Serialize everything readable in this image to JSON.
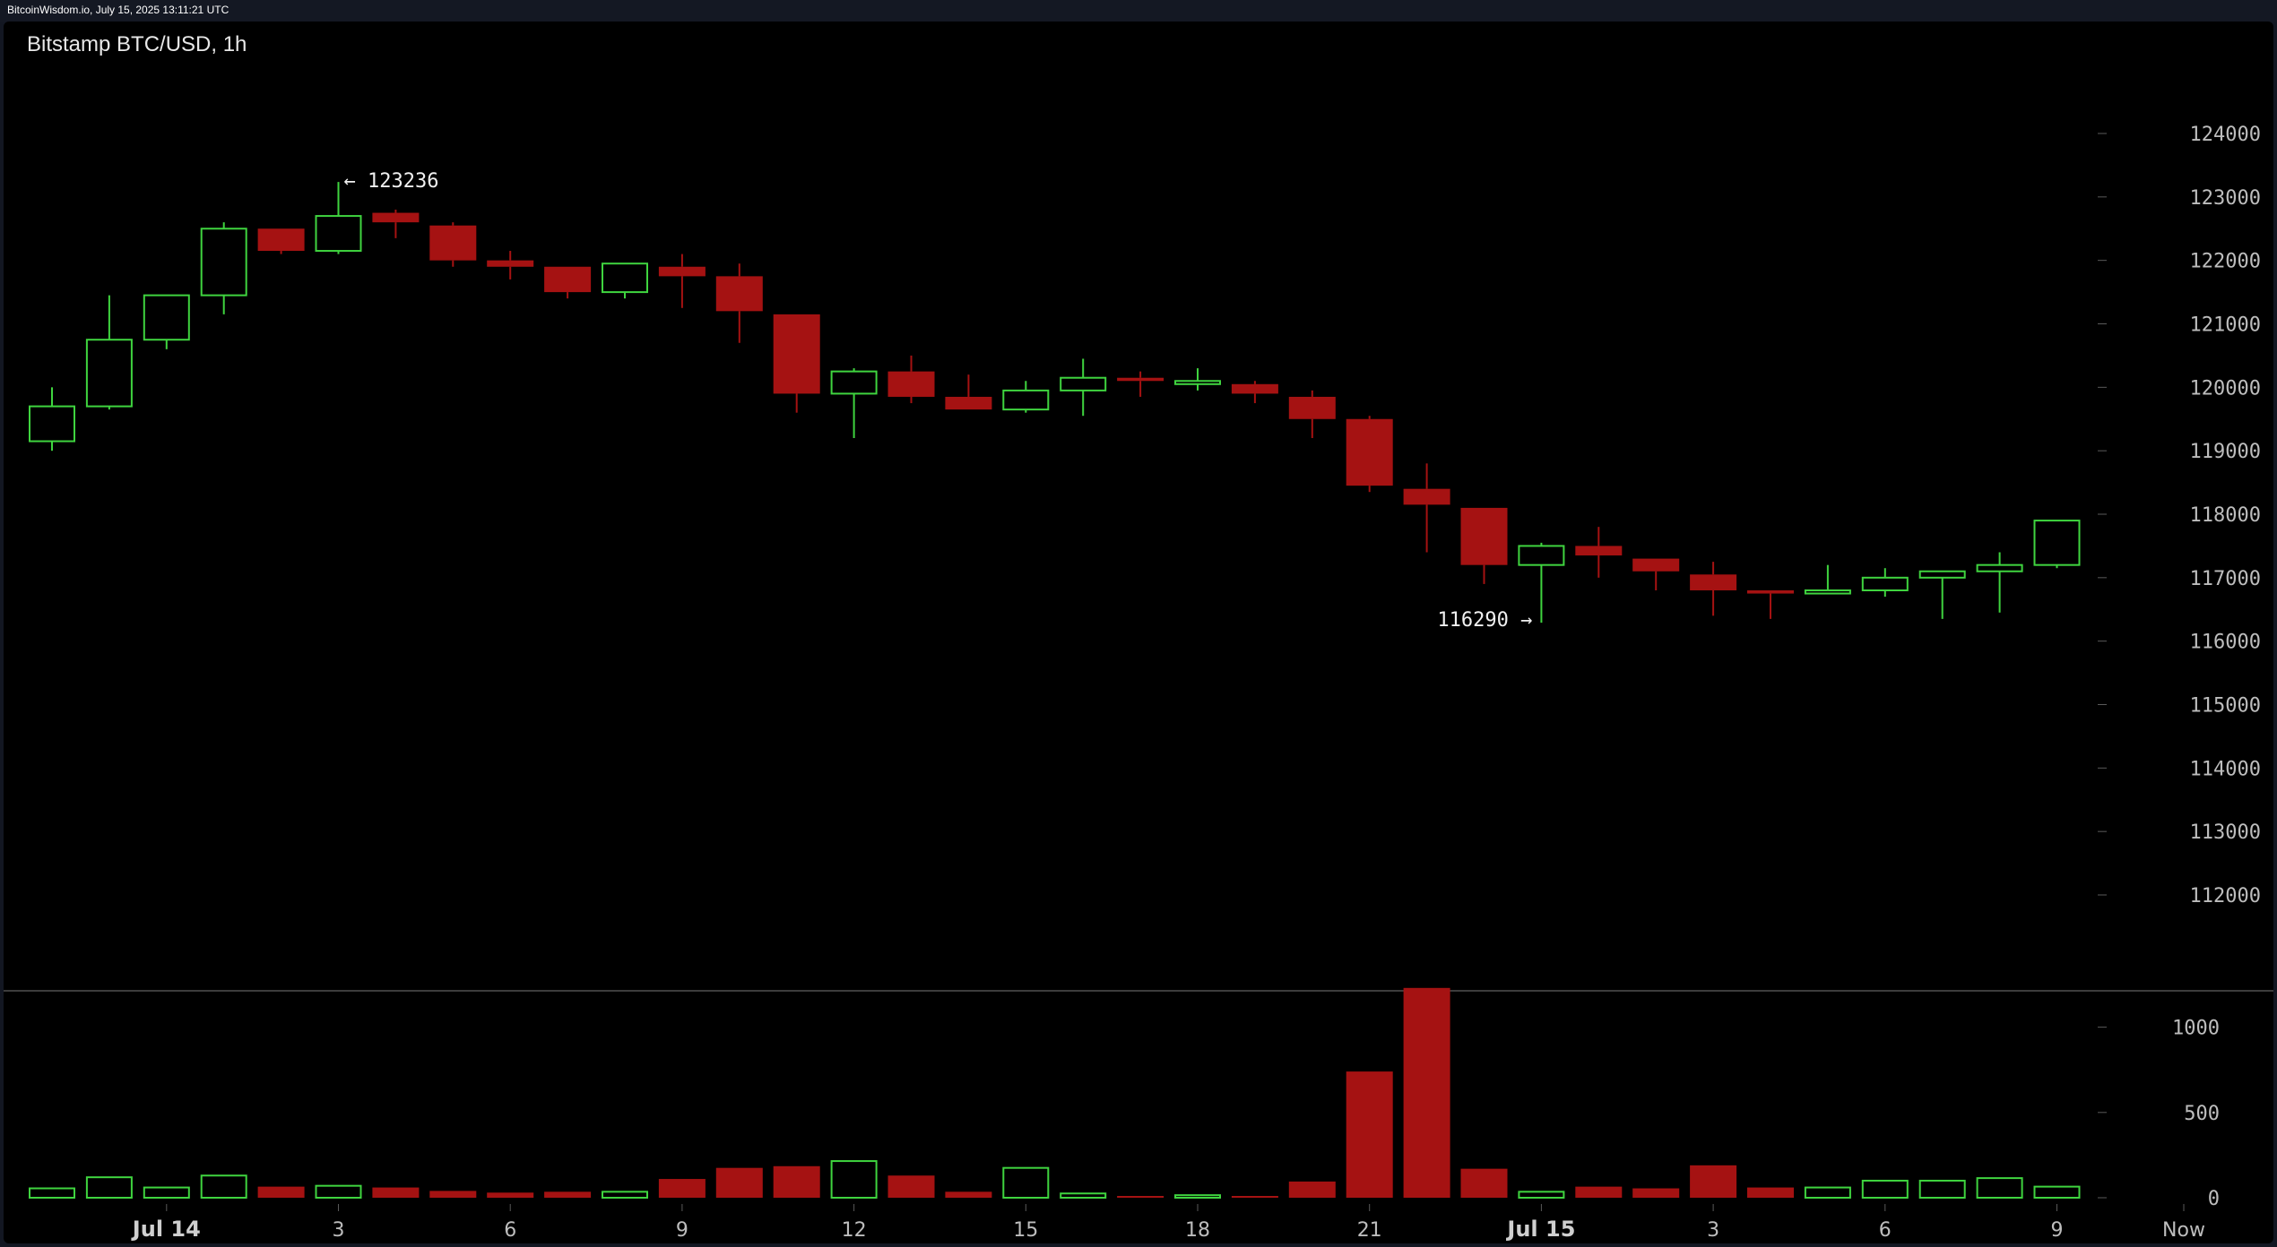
{
  "header": {
    "stamp": "BitcoinWisdom.io, July 15, 2025 13:11:21 UTC"
  },
  "chart_data": {
    "type": "candlestick",
    "title": "Bitstamp BTC/USD, 1h",
    "colors": {
      "up": "#3fd43f",
      "down": "#a51212",
      "grid": "#3a3a3a",
      "background": "#000000"
    },
    "price_axis": {
      "range": [
        110800,
        125200
      ],
      "ticks": [
        112000,
        113000,
        114000,
        115000,
        116000,
        117000,
        118000,
        119000,
        120000,
        121000,
        122000,
        123000,
        124000
      ]
    },
    "volume_axis": {
      "range": [
        0,
        1250
      ],
      "ticks": [
        0,
        500,
        1000
      ]
    },
    "x_labels": [
      {
        "i": 2,
        "label": "Jul 14",
        "strong": true
      },
      {
        "i": 5,
        "label": "3"
      },
      {
        "i": 8,
        "label": "6"
      },
      {
        "i": 11,
        "label": "9"
      },
      {
        "i": 14,
        "label": "12"
      },
      {
        "i": 17,
        "label": "15"
      },
      {
        "i": 20,
        "label": "18"
      },
      {
        "i": 23,
        "label": "21"
      },
      {
        "i": 26,
        "label": "Jul 15",
        "strong": true
      },
      {
        "i": 29,
        "label": "3"
      },
      {
        "i": 32,
        "label": "6"
      },
      {
        "i": 35,
        "label": "9"
      },
      {
        "i": 37,
        "label": "Now"
      }
    ],
    "annotations": [
      {
        "text": "← 123236",
        "i": 5,
        "price": 123236,
        "side": "right"
      },
      {
        "text": "116290 →",
        "i": 26,
        "price": 116290,
        "side": "left"
      }
    ],
    "candles": [
      {
        "o": 119150,
        "h": 120000,
        "l": 119000,
        "c": 119700,
        "v": 55
      },
      {
        "o": 119700,
        "h": 121450,
        "l": 119650,
        "c": 120750,
        "v": 120
      },
      {
        "o": 120750,
        "h": 121450,
        "l": 120600,
        "c": 121450,
        "v": 60
      },
      {
        "o": 121450,
        "h": 122600,
        "l": 121150,
        "c": 122500,
        "v": 130
      },
      {
        "o": 122500,
        "h": 122500,
        "l": 122100,
        "c": 122150,
        "v": 65
      },
      {
        "o": 122150,
        "h": 123236,
        "l": 122100,
        "c": 122700,
        "v": 70
      },
      {
        "o": 122750,
        "h": 122800,
        "l": 122350,
        "c": 122600,
        "v": 60
      },
      {
        "o": 122550,
        "h": 122600,
        "l": 121900,
        "c": 122000,
        "v": 40
      },
      {
        "o": 122000,
        "h": 122150,
        "l": 121700,
        "c": 121900,
        "v": 30
      },
      {
        "o": 121900,
        "h": 121900,
        "l": 121400,
        "c": 121500,
        "v": 35
      },
      {
        "o": 121500,
        "h": 121950,
        "l": 121400,
        "c": 121950,
        "v": 35
      },
      {
        "o": 121900,
        "h": 122100,
        "l": 121250,
        "c": 121750,
        "v": 110
      },
      {
        "o": 121750,
        "h": 121950,
        "l": 120700,
        "c": 121200,
        "v": 175
      },
      {
        "o": 121150,
        "h": 121150,
        "l": 119600,
        "c": 119900,
        "v": 185
      },
      {
        "o": 119900,
        "h": 120300,
        "l": 119200,
        "c": 120250,
        "v": 215
      },
      {
        "o": 120250,
        "h": 120500,
        "l": 119750,
        "c": 119850,
        "v": 130
      },
      {
        "o": 119850,
        "h": 120200,
        "l": 119650,
        "c": 119650,
        "v": 35
      },
      {
        "o": 119650,
        "h": 120100,
        "l": 119600,
        "c": 119950,
        "v": 175
      },
      {
        "o": 119950,
        "h": 120450,
        "l": 119550,
        "c": 120150,
        "v": 25
      },
      {
        "o": 120150,
        "h": 120250,
        "l": 119850,
        "c": 120100,
        "v": 8
      },
      {
        "o": 120050,
        "h": 120300,
        "l": 119950,
        "c": 120100,
        "v": 15
      },
      {
        "o": 120050,
        "h": 120100,
        "l": 119750,
        "c": 119900,
        "v": 10
      },
      {
        "o": 119850,
        "h": 119950,
        "l": 119200,
        "c": 119500,
        "v": 95
      },
      {
        "o": 119500,
        "h": 119550,
        "l": 118350,
        "c": 118450,
        "v": 740
      },
      {
        "o": 118400,
        "h": 118800,
        "l": 117400,
        "c": 118150,
        "v": 1230
      },
      {
        "o": 118100,
        "h": 118100,
        "l": 116900,
        "c": 117200,
        "v": 170
      },
      {
        "o": 117200,
        "h": 117550,
        "l": 116290,
        "c": 117500,
        "v": 35
      },
      {
        "o": 117500,
        "h": 117800,
        "l": 117000,
        "c": 117350,
        "v": 65
      },
      {
        "o": 117300,
        "h": 117300,
        "l": 116800,
        "c": 117100,
        "v": 55
      },
      {
        "o": 117050,
        "h": 117250,
        "l": 116400,
        "c": 116800,
        "v": 190
      },
      {
        "o": 116800,
        "h": 116800,
        "l": 116350,
        "c": 116750,
        "v": 60
      },
      {
        "o": 116750,
        "h": 117200,
        "l": 116750,
        "c": 116800,
        "v": 60
      },
      {
        "o": 116800,
        "h": 117150,
        "l": 116700,
        "c": 117000,
        "v": 100
      },
      {
        "o": 117000,
        "h": 117100,
        "l": 116350,
        "c": 117100,
        "v": 100
      },
      {
        "o": 117100,
        "h": 117400,
        "l": 116450,
        "c": 117200,
        "v": 115
      },
      {
        "o": 117200,
        "h": 117900,
        "l": 117150,
        "c": 117900,
        "v": 65
      }
    ]
  }
}
